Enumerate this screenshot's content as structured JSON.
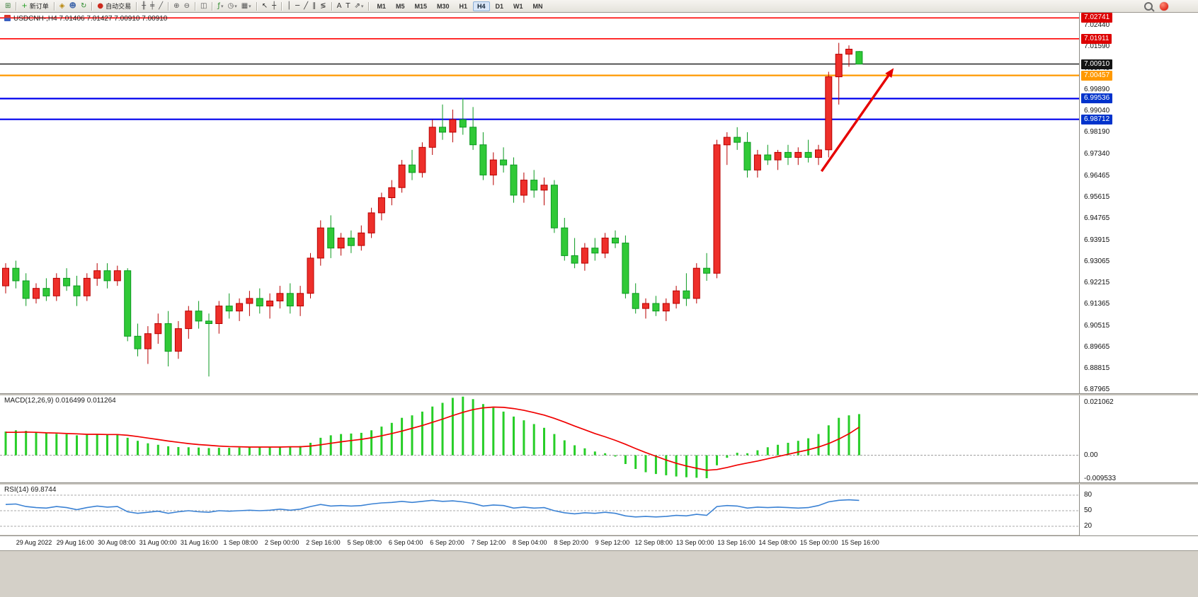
{
  "toolbar": {
    "timeframes": [
      "M1",
      "M5",
      "M15",
      "M30",
      "H1",
      "H4",
      "D1",
      "W1",
      "MN"
    ],
    "active_timeframe": "H4",
    "groups": [
      {
        "items": [
          {
            "name": "new-chart-icon",
            "glyph": "⊞",
            "color": "#3a7d3a"
          }
        ]
      },
      {
        "items": [
          {
            "name": "new-order-button",
            "glyph": "+",
            "color": "#1f9e1f",
            "label": "新订单"
          }
        ]
      },
      {
        "items": [
          {
            "name": "layouts-icon",
            "glyph": "◈",
            "color": "#b8860b"
          },
          {
            "name": "profile-icon",
            "glyph": "☻",
            "color": "#4a6eae"
          },
          {
            "name": "refresh-icon",
            "glyph": "↻",
            "color": "#2a8a2a"
          }
        ]
      },
      {
        "items": [
          {
            "name": "auto-trading-button",
            "glyph": "●",
            "color": "#cc2a1e",
            "label": "自动交易"
          }
        ]
      },
      {
        "items": [
          {
            "name": "bar-chart-icon",
            "glyph": "╫",
            "color": "#555555"
          },
          {
            "name": "candlestick-chart-icon",
            "glyph": "╪",
            "color": "#555555"
          },
          {
            "name": "line-chart-icon",
            "glyph": "╱",
            "color": "#555555"
          }
        ]
      },
      {
        "items": [
          {
            "name": "zoom-in-icon",
            "glyph": "⊕",
            "color": "#555555"
          },
          {
            "name": "zoom-out-icon",
            "glyph": "⊖",
            "color": "#555555"
          }
        ]
      },
      {
        "items": [
          {
            "name": "tile-windows-icon",
            "glyph": "◫",
            "color": "#555555"
          }
        ]
      },
      {
        "items": [
          {
            "name": "indicators-icon",
            "glyph": "ƒ",
            "color": "#2a8a2a",
            "dropdown": true
          },
          {
            "name": "periods-icon",
            "glyph": "◷",
            "color": "#555555",
            "dropdown": true
          },
          {
            "name": "templates-icon",
            "glyph": "▦",
            "color": "#555555",
            "dropdown": true
          }
        ]
      },
      {
        "items": [
          {
            "name": "cursor-icon",
            "glyph": "↖",
            "color": "#333333"
          },
          {
            "name": "crosshair-icon",
            "glyph": "┼",
            "color": "#333333"
          }
        ]
      },
      {
        "items": [
          {
            "name": "vertical-line-icon",
            "glyph": "│",
            "color": "#333333"
          },
          {
            "name": "horizontal-line-icon",
            "glyph": "─",
            "color": "#333333"
          },
          {
            "name": "trendline-icon",
            "glyph": "╱",
            "color": "#333333"
          },
          {
            "name": "channel-icon",
            "glyph": "∥",
            "color": "#333333"
          },
          {
            "name": "fibonacci-icon",
            "glyph": "≶",
            "color": "#333333"
          }
        ]
      },
      {
        "items": [
          {
            "name": "text-icon",
            "glyph": "A",
            "color": "#333333"
          },
          {
            "name": "text-label-icon",
            "glyph": "T",
            "color": "#333333"
          },
          {
            "name": "arrows-icon",
            "glyph": "⇗",
            "color": "#333333",
            "dropdown": true
          }
        ]
      },
      {
        "timeframes": true
      }
    ]
  },
  "price_scale": {
    "ticks": [
      "7.02440",
      "7.01590",
      "7.00740",
      "6.99890",
      "6.99040",
      "6.98190",
      "6.97340",
      "6.96465",
      "6.95615",
      "6.94765",
      "6.93915",
      "6.93065",
      "6.92215",
      "6.91365",
      "6.90515",
      "6.89665",
      "6.88815",
      "6.87965"
    ],
    "badges": [
      {
        "value": "7.02741",
        "bg": "#dd0000"
      },
      {
        "value": "7.01911",
        "bg": "#dd0000"
      },
      {
        "value": "7.00910",
        "bg": "#141414"
      },
      {
        "value": "7.00457",
        "bg": "#ff9900"
      },
      {
        "value": "6.99536",
        "bg": "#0033cc"
      },
      {
        "value": "6.98712",
        "bg": "#0033cc"
      }
    ]
  },
  "chart_data": [
    {
      "type": "candlestick",
      "title": "USDCNH-,H4",
      "symbol": "USDCNH",
      "timeframe": "H4",
      "header": "USDCNH-,H4 7.01406 7.01427 7.00910 7.00910",
      "ohlc_display": {
        "open": "7.01406",
        "high": "7.01427",
        "low": "7.00910",
        "close": "7.00910"
      },
      "convention": "red-up-green-down",
      "up_color": "#ee2f2a",
      "up_stroke": "#b80000",
      "down_color": "#30c937",
      "down_stroke": "#0b9a20",
      "y_range": [
        6.876,
        7.028
      ],
      "x_labels": [
        "29 Aug 2022",
        "29 Aug 16:00",
        "30 Aug 08:00",
        "31 Aug 00:00",
        "31 Aug 16:00",
        "1 Sep 08:00",
        "2 Sep 00:00",
        "2 Sep 16:00",
        "5 Sep 08:00",
        "6 Sep 04:00",
        "6 Sep 20:00",
        "7 Sep 12:00",
        "8 Sep 04:00",
        "8 Sep 20:00",
        "9 Sep 12:00",
        "12 Sep 08:00",
        "13 Sep 00:00",
        "13 Sep 16:00",
        "14 Sep 08:00",
        "15 Sep 00:00",
        "15 Sep 16:00"
      ],
      "hlines": [
        {
          "price": 7.02741,
          "color": "#ff0000",
          "width": 1.6
        },
        {
          "price": 7.01911,
          "color": "#ff0000",
          "width": 1.6
        },
        {
          "price": 7.0091,
          "color": "#000000",
          "width": 1.2
        },
        {
          "price": 7.00457,
          "color": "#ff9900",
          "width": 2.2
        },
        {
          "price": 6.99536,
          "color": "#0000ee",
          "width": 2.2
        },
        {
          "price": 6.98712,
          "color": "#0000ee",
          "width": 2.2
        }
      ],
      "arrow": {
        "from_bar": 80.3,
        "from_price": 6.9665,
        "to_bar": 87.4,
        "to_price": 7.0075,
        "color": "#e60000"
      },
      "candles": [
        [
          6.921,
          6.93,
          6.918,
          6.928
        ],
        [
          6.928,
          6.931,
          6.92,
          6.923
        ],
        [
          6.923,
          6.926,
          6.913,
          6.916
        ],
        [
          6.916,
          6.922,
          6.914,
          6.92
        ],
        [
          6.92,
          6.924,
          6.915,
          6.917
        ],
        [
          6.917,
          6.926,
          6.915,
          6.924
        ],
        [
          6.924,
          6.928,
          6.919,
          6.921
        ],
        [
          6.921,
          6.925,
          6.913,
          6.917
        ],
        [
          6.917,
          6.926,
          6.915,
          6.924
        ],
        [
          6.924,
          6.93,
          6.921,
          6.927
        ],
        [
          6.927,
          6.93,
          6.92,
          6.923
        ],
        [
          6.923,
          6.929,
          6.921,
          6.927
        ],
        [
          6.927,
          6.928,
          6.899,
          6.901
        ],
        [
          6.901,
          6.906,
          6.893,
          6.896
        ],
        [
          6.896,
          6.905,
          6.89,
          6.902
        ],
        [
          6.902,
          6.91,
          6.898,
          6.906
        ],
        [
          6.906,
          6.911,
          6.889,
          6.895
        ],
        [
          6.895,
          6.907,
          6.892,
          6.904
        ],
        [
          6.904,
          6.913,
          6.9,
          6.911
        ],
        [
          6.911,
          6.915,
          6.904,
          6.907
        ],
        [
          6.907,
          6.91,
          6.885,
          6.906
        ],
        [
          6.906,
          6.915,
          6.902,
          6.913
        ],
        [
          6.913,
          6.918,
          6.908,
          6.911
        ],
        [
          6.911,
          6.916,
          6.907,
          6.914
        ],
        [
          6.914,
          6.919,
          6.909,
          6.916
        ],
        [
          6.916,
          6.92,
          6.91,
          6.913
        ],
        [
          6.913,
          6.918,
          6.908,
          6.915
        ],
        [
          6.915,
          6.921,
          6.912,
          6.918
        ],
        [
          6.918,
          6.922,
          6.91,
          6.913
        ],
        [
          6.913,
          6.921,
          6.909,
          6.918
        ],
        [
          6.918,
          6.934,
          6.916,
          6.932
        ],
        [
          6.932,
          6.947,
          6.929,
          6.944
        ],
        [
          6.944,
          6.949,
          6.932,
          6.936
        ],
        [
          6.936,
          6.942,
          6.933,
          6.94
        ],
        [
          6.94,
          6.943,
          6.934,
          6.937
        ],
        [
          6.937,
          6.945,
          6.935,
          6.942
        ],
        [
          6.942,
          6.952,
          6.94,
          6.95
        ],
        [
          6.95,
          6.958,
          6.947,
          6.956
        ],
        [
          6.956,
          6.963,
          6.953,
          6.96
        ],
        [
          6.96,
          6.971,
          6.958,
          6.969
        ],
        [
          6.969,
          6.975,
          6.963,
          6.966
        ],
        [
          6.966,
          6.978,
          6.964,
          6.976
        ],
        [
          6.976,
          6.987,
          6.973,
          6.984
        ],
        [
          6.984,
          6.993,
          6.979,
          6.982
        ],
        [
          6.982,
          6.991,
          6.978,
          6.987
        ],
        [
          6.987,
          6.9955,
          6.981,
          6.984
        ],
        [
          6.984,
          6.992,
          6.975,
          6.977
        ],
        [
          6.977,
          6.982,
          6.963,
          6.965
        ],
        [
          6.965,
          6.974,
          6.961,
          6.971
        ],
        [
          6.971,
          6.976,
          6.966,
          6.969
        ],
        [
          6.969,
          6.972,
          6.954,
          6.957
        ],
        [
          6.957,
          6.966,
          6.954,
          6.963
        ],
        [
          6.963,
          6.967,
          6.956,
          6.959
        ],
        [
          6.959,
          6.964,
          6.953,
          6.961
        ],
        [
          6.961,
          6.963,
          6.942,
          6.944
        ],
        [
          6.944,
          6.948,
          6.931,
          6.933
        ],
        [
          6.933,
          6.94,
          6.928,
          6.93
        ],
        [
          6.93,
          6.938,
          6.927,
          6.936
        ],
        [
          6.936,
          6.94,
          6.931,
          6.934
        ],
        [
          6.934,
          6.942,
          6.932,
          6.94
        ],
        [
          6.94,
          6.943,
          6.936,
          6.938
        ],
        [
          6.938,
          6.941,
          6.916,
          6.918
        ],
        [
          6.918,
          6.922,
          6.91,
          6.912
        ],
        [
          6.912,
          6.916,
          6.908,
          6.914
        ],
        [
          6.914,
          6.917,
          6.909,
          6.911
        ],
        [
          6.911,
          6.916,
          6.907,
          6.914
        ],
        [
          6.914,
          6.921,
          6.912,
          6.919
        ],
        [
          6.919,
          6.926,
          6.913,
          6.916
        ],
        [
          6.916,
          6.93,
          6.914,
          6.928
        ],
        [
          6.928,
          6.934,
          6.923,
          6.926
        ],
        [
          6.926,
          6.979,
          6.924,
          6.977
        ],
        [
          6.977,
          6.982,
          6.969,
          6.98
        ],
        [
          6.98,
          6.984,
          6.975,
          6.978
        ],
        [
          6.978,
          6.982,
          6.964,
          6.967
        ],
        [
          6.967,
          6.975,
          6.964,
          6.973
        ],
        [
          6.973,
          6.977,
          6.969,
          6.971
        ],
        [
          6.971,
          6.975,
          6.967,
          6.974
        ],
        [
          6.974,
          6.977,
          6.969,
          6.972
        ],
        [
          6.972,
          6.976,
          6.969,
          6.974
        ],
        [
          6.974,
          6.979,
          6.97,
          6.972
        ],
        [
          6.972,
          6.977,
          6.969,
          6.975
        ],
        [
          6.975,
          7.006,
          6.972,
          7.004
        ],
        [
          7.004,
          7.0175,
          6.993,
          7.013
        ],
        [
          7.013,
          7.0165,
          7.008,
          7.015
        ],
        [
          7.01406,
          7.01427,
          7.0091,
          7.0091
        ]
      ]
    },
    {
      "type": "bar",
      "name": "MACD(12,26,9)",
      "label": "MACD(12,26,9) 0.016499 0.011264",
      "current_macd": 0.016499,
      "current_signal": 0.011264,
      "histogram_color": "#27ce27",
      "signal_color": "#f00000",
      "scale_labels": [
        "0.021062",
        "0.00",
        "-0.009533"
      ],
      "y_range": [
        -0.0105,
        0.0237
      ],
      "values": [
        0.0095,
        0.01,
        0.0098,
        0.0092,
        0.0088,
        0.0086,
        0.0084,
        0.008,
        0.0082,
        0.0085,
        0.0083,
        0.0082,
        0.007,
        0.0058,
        0.0048,
        0.0042,
        0.0036,
        0.0033,
        0.0032,
        0.0031,
        0.0029,
        0.003,
        0.003,
        0.0031,
        0.0032,
        0.0032,
        0.0033,
        0.0035,
        0.0035,
        0.0037,
        0.005,
        0.007,
        0.008,
        0.0085,
        0.0087,
        0.009,
        0.01,
        0.0115,
        0.013,
        0.015,
        0.016,
        0.0175,
        0.0195,
        0.021,
        0.023,
        0.0235,
        0.0225,
        0.0205,
        0.019,
        0.0175,
        0.0155,
        0.014,
        0.0125,
        0.011,
        0.0085,
        0.006,
        0.004,
        0.0028,
        0.0015,
        0.0008,
        -0.0005,
        -0.0035,
        -0.0055,
        -0.0068,
        -0.0075,
        -0.008,
        -0.0085,
        -0.0088,
        -0.009,
        -0.0092,
        -0.004,
        -0.001,
        0.001,
        0.0008,
        0.002,
        0.0032,
        0.0042,
        0.005,
        0.0058,
        0.0068,
        0.0085,
        0.012,
        0.015,
        0.016,
        0.016499
      ],
      "signal": [
        0.0092,
        0.0092,
        0.0093,
        0.0092,
        0.009,
        0.0089,
        0.0087,
        0.0086,
        0.0084,
        0.0084,
        0.0083,
        0.0083,
        0.008,
        0.0075,
        0.0069,
        0.0063,
        0.0057,
        0.0052,
        0.0047,
        0.0043,
        0.004,
        0.0037,
        0.0035,
        0.0034,
        0.0033,
        0.0033,
        0.0033,
        0.0033,
        0.0034,
        0.0034,
        0.0037,
        0.0042,
        0.0048,
        0.0054,
        0.0059,
        0.0064,
        0.007,
        0.0078,
        0.0087,
        0.0097,
        0.0108,
        0.0119,
        0.0132,
        0.0145,
        0.0159,
        0.0172,
        0.0183,
        0.019,
        0.0193,
        0.0192,
        0.0187,
        0.018,
        0.0171,
        0.0161,
        0.0148,
        0.0133,
        0.0117,
        0.0102,
        0.0087,
        0.0074,
        0.006,
        0.0044,
        0.0027,
        0.0011,
        -0.0004,
        -0.0019,
        -0.0032,
        -0.0043,
        -0.0052,
        -0.006,
        -0.0057,
        -0.0049,
        -0.0039,
        -0.0031,
        -0.0023,
        -0.0014,
        -0.0005,
        0.0004,
        0.0013,
        0.0022,
        0.0033,
        0.0047,
        0.0065,
        0.0086,
        0.011264
      ]
    },
    {
      "type": "line",
      "name": "RSI(14)",
      "label": "RSI(14) 69.8744",
      "current": 69.8744,
      "line_color": "#3b82d4",
      "levels": [
        80,
        50,
        20
      ],
      "values": [
        62,
        63,
        58,
        56,
        55,
        58,
        56,
        52,
        56,
        59,
        57,
        58,
        48,
        45,
        47,
        49,
        45,
        48,
        50,
        48,
        47,
        50,
        49,
        50,
        51,
        50,
        51,
        53,
        51,
        53,
        58,
        62,
        59,
        60,
        59,
        60,
        63,
        65,
        66,
        68,
        66,
        68,
        70,
        68,
        69,
        67,
        64,
        59,
        61,
        60,
        55,
        57,
        55,
        56,
        50,
        46,
        44,
        46,
        45,
        47,
        45,
        40,
        38,
        39,
        38,
        39,
        41,
        40,
        43,
        41,
        58,
        60,
        59,
        55,
        57,
        56,
        57,
        56,
        55,
        56,
        60,
        67,
        70,
        71,
        69.87
      ]
    }
  ]
}
